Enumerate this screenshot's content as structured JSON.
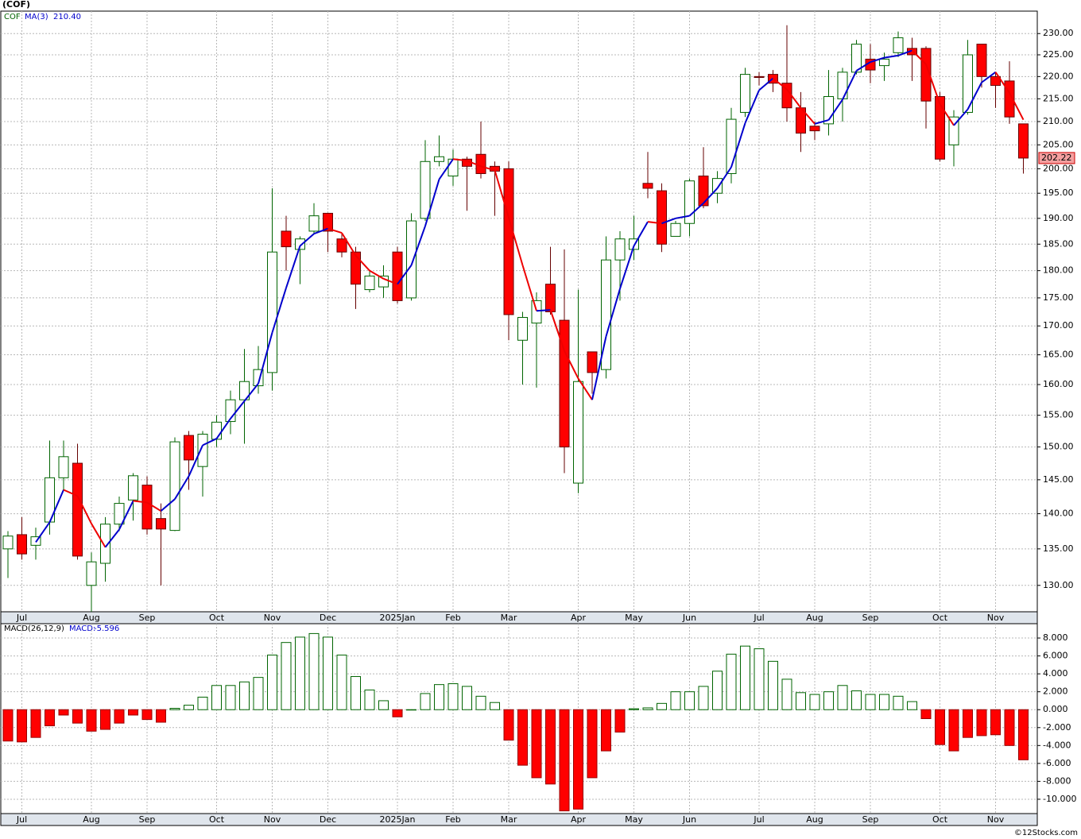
{
  "chart_data": [
    {
      "type": "candlestick",
      "title": "(COF)",
      "symbol": "COF",
      "categories": [
        null,
        "Jul",
        null,
        null,
        null,
        null,
        "Aug",
        null,
        null,
        null,
        "Sep",
        null,
        null,
        null,
        null,
        "Oct",
        null,
        null,
        null,
        "Nov",
        null,
        null,
        null,
        "Dec",
        null,
        null,
        null,
        null,
        "2025Jan",
        null,
        null,
        null,
        "Feb",
        null,
        null,
        null,
        "Mar",
        null,
        null,
        null,
        null,
        "Apr",
        null,
        null,
        null,
        "May",
        null,
        null,
        null,
        "Jun",
        null,
        null,
        null,
        null,
        "Jul",
        null,
        null,
        null,
        "Aug",
        null,
        null,
        null,
        "Sep",
        null,
        null,
        null,
        null,
        "Oct",
        null,
        null,
        null,
        "Nov",
        null,
        null
      ],
      "open": [
        135,
        137,
        135.5,
        138.8,
        145.3,
        147.5,
        130,
        133,
        138.5,
        142,
        144.2,
        139.3,
        137.6,
        151.8,
        147,
        151.2,
        154,
        157.5,
        159.8,
        162,
        187.5,
        184,
        187.5,
        191,
        186,
        183.5,
        176.5,
        177,
        183.5,
        175,
        190,
        201.5,
        198.5,
        202,
        203,
        200.5,
        200,
        167.5,
        170.5,
        177.5,
        171,
        144.5,
        165.5,
        162.5,
        182,
        184,
        197,
        195.5,
        186.5,
        189,
        198.5,
        195,
        199,
        212,
        220,
        220.5,
        218.5,
        213,
        209,
        209.5,
        215,
        221,
        224,
        222.5,
        225.5,
        226.5,
        226.5,
        215.5,
        205,
        212,
        227.5,
        220,
        219,
        209.5
      ],
      "high": [
        137.5,
        139.5,
        138,
        151,
        151,
        150.5,
        134.5,
        139.5,
        142.5,
        146,
        145.5,
        141.5,
        151.5,
        152.5,
        152.5,
        155,
        159,
        166,
        166.5,
        196,
        190.5,
        186.5,
        193,
        191,
        187,
        184.5,
        180,
        181,
        184.5,
        191,
        206,
        207,
        204,
        202.5,
        210,
        201.5,
        201.5,
        172.5,
        176,
        184.5,
        184,
        176.5,
        165.5,
        186.5,
        187.5,
        190.5,
        203.5,
        197,
        189.5,
        198,
        204.5,
        199.5,
        213,
        222,
        221,
        221.5,
        232,
        216.5,
        210,
        221.5,
        222,
        228.5,
        227.5,
        225.5,
        230.5,
        229,
        227,
        216.5,
        212.5,
        228.5,
        227.5,
        221,
        223.5,
        209.5
      ],
      "low": [
        131,
        133.5,
        133.5,
        137,
        143.5,
        133.5,
        126.5,
        130.5,
        137.5,
        139,
        137,
        130,
        137.5,
        143.5,
        142.5,
        150,
        152,
        150.5,
        158.5,
        159,
        180,
        177.5,
        187,
        183.5,
        182.5,
        173,
        176,
        175,
        174,
        174.5,
        189.5,
        200.5,
        196.5,
        191.5,
        198,
        190.5,
        167.5,
        160,
        159.5,
        172,
        146,
        143,
        158.5,
        161,
        174.5,
        182,
        194,
        183.5,
        186.5,
        186.5,
        192,
        193,
        197,
        211,
        218,
        216.5,
        210,
        203.5,
        206,
        207,
        210,
        220.5,
        218.5,
        219,
        224.5,
        219,
        208.5,
        201.5,
        200.5,
        211.5,
        217.5,
        213,
        209.5,
        199
      ],
      "close": [
        136.8,
        134.3,
        136.7,
        145.3,
        148.5,
        134,
        133.2,
        138.5,
        141.5,
        145.6,
        137.8,
        137.8,
        150.8,
        148,
        152,
        153.9,
        157.5,
        160.5,
        162.5,
        183.5,
        184.5,
        186,
        190.5,
        187.5,
        183.5,
        177.5,
        179,
        179,
        174.5,
        189.5,
        201.5,
        202.5,
        202,
        200.5,
        199,
        199.5,
        172,
        171.5,
        174.5,
        172.5,
        150,
        160.5,
        162,
        182,
        186,
        186,
        196,
        185,
        189,
        197.5,
        192.5,
        198,
        210.5,
        220.5,
        219.8,
        218.5,
        213,
        207.5,
        208,
        215.5,
        221,
        227.5,
        221.5,
        224,
        229,
        225,
        214.5,
        202,
        211,
        225,
        220,
        218,
        211,
        202.22
      ],
      "up_color": "#006400",
      "down_color": "#ff0000",
      "overlay": {
        "name": "MA(3)",
        "up_color": "#0000cc",
        "down_color": "#ee0000",
        "last_label": "210.40",
        "values": [
          null,
          null,
          135.93,
          138.77,
          143.5,
          142.6,
          138.57,
          135.23,
          137.73,
          141.87,
          141.63,
          140.4,
          142.13,
          145.53,
          150.27,
          151.3,
          154.47,
          157.3,
          160.17,
          168.83,
          176.83,
          184.67,
          187,
          188,
          187.17,
          182.83,
          180,
          178.5,
          177.5,
          181,
          188.5,
          197.83,
          202,
          201.67,
          200.5,
          199.67,
          190.17,
          181,
          172.67,
          172.83,
          165.67,
          161,
          157.5,
          168.17,
          176.67,
          184.67,
          189.33,
          189,
          190,
          190.5,
          193,
          196,
          200.33,
          209.67,
          216.93,
          219.6,
          217.1,
          213,
          209.5,
          210.33,
          214.83,
          221.33,
          223.33,
          224.33,
          224.83,
          226,
          222.83,
          213.83,
          209.17,
          212.67,
          218.67,
          221,
          216.33,
          210.4
        ]
      },
      "last_close_label": "202.22",
      "log_scale": true,
      "grid": true,
      "ylim": [
        126.5,
        235.4
      ],
      "yticks": [
        {
          "value": 130,
          "label": "130.00"
        },
        {
          "value": 135,
          "label": "135.00"
        },
        {
          "value": 140,
          "label": "140.00"
        },
        {
          "value": 145,
          "label": "145.00"
        },
        {
          "value": 150,
          "label": "150.00"
        },
        {
          "value": 155,
          "label": "155.00"
        },
        {
          "value": 160,
          "label": "160.00"
        },
        {
          "value": 165,
          "label": "165.00"
        },
        {
          "value": 170,
          "label": "170.00"
        },
        {
          "value": 175,
          "label": "175.00"
        },
        {
          "value": 180,
          "label": "180.00"
        },
        {
          "value": 185,
          "label": "185.00"
        },
        {
          "value": 190,
          "label": "190.00"
        },
        {
          "value": 195,
          "label": "195.00"
        },
        {
          "value": 200,
          "label": "200.00"
        },
        {
          "value": 205,
          "label": "205.00"
        },
        {
          "value": 210,
          "label": "210.00"
        },
        {
          "value": 215,
          "label": "215.00"
        },
        {
          "value": 220,
          "label": "220.00"
        },
        {
          "value": 225,
          "label": "225.00"
        },
        {
          "value": 230,
          "label": "230.00"
        }
      ]
    },
    {
      "type": "bar",
      "name": "MACD(26,12,9)",
      "value_caption": "MACD:",
      "last_label": "-5.596",
      "up_color": "#006400",
      "down_color": "#ff0000",
      "grid": true,
      "values": [
        -3.5,
        -3.6,
        -3.1,
        -1.8,
        -0.6,
        -1.5,
        -2.4,
        -2.2,
        -1.5,
        -0.6,
        -1.1,
        -1.4,
        0.15,
        0.5,
        1.4,
        2.7,
        2.7,
        3.1,
        3.6,
        6.1,
        7.5,
        8.1,
        8.5,
        8.1,
        6.1,
        3.7,
        2.2,
        1.0,
        -0.8,
        0,
        1.8,
        2.8,
        2.9,
        2.6,
        1.5,
        0.8,
        -3.4,
        -6.2,
        -7.6,
        -8.3,
        -11.3,
        -11.1,
        -7.6,
        -4.6,
        -2.5,
        0.1,
        0.2,
        0.7,
        2.0,
        2.0,
        2.6,
        4.3,
        6.2,
        7.1,
        6.8,
        5.4,
        3.4,
        1.9,
        1.7,
        2.0,
        2.7,
        2.1,
        1.7,
        1.7,
        1.5,
        0.9,
        -1.0,
        -3.9,
        -4.6,
        -3.1,
        -2.9,
        -2.8,
        -4.0,
        -5.596
      ],
      "ylim": [
        -11.6,
        9.6
      ],
      "yticks": [
        {
          "value": -10,
          "label": "-10.000"
        },
        {
          "value": -8,
          "label": "-8.000"
        },
        {
          "value": -6,
          "label": "-6.000"
        },
        {
          "value": -4,
          "label": "-4.000"
        },
        {
          "value": -2,
          "label": "-2.000"
        },
        {
          "value": 0,
          "label": "0.000"
        },
        {
          "value": 2,
          "label": "2.000"
        },
        {
          "value": 4,
          "label": "4.000"
        },
        {
          "value": 6,
          "label": "6.000"
        },
        {
          "value": 8,
          "label": "8.000"
        }
      ]
    }
  ],
  "footer": "©12Stocks.com"
}
